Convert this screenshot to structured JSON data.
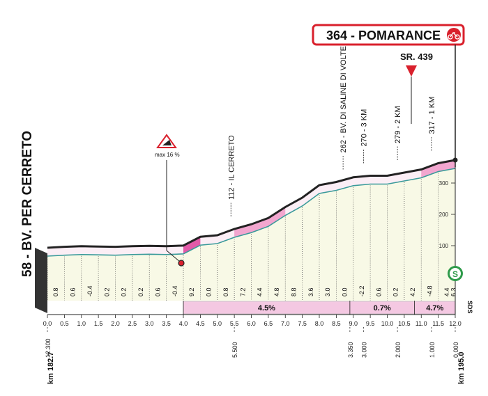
{
  "chart_data": {
    "type": "area",
    "title": "364 - POMARANCE",
    "start_label": "58 - BV. PER CERRETO",
    "road_label": "SR. 439",
    "km_start_label": "km 182.7",
    "km_end_label": "km 195.0",
    "x": [
      0,
      0.5,
      1,
      1.5,
      2,
      2.5,
      3,
      3.5,
      4,
      4.5,
      5,
      5.5,
      6,
      6.5,
      7,
      7.5,
      8,
      8.5,
      9,
      9.5,
      10,
      10.5,
      11,
      11.5,
      12
    ],
    "y": [
      80,
      83,
      85,
      84,
      83,
      85,
      86,
      85,
      87,
      115,
      120,
      140,
      155,
      175,
      210,
      240,
      280,
      290,
      305,
      310,
      310,
      320,
      330,
      350,
      360
    ],
    "xlim": [
      0,
      12
    ],
    "ylim": [
      0,
      400
    ],
    "x_ticks": [
      "0.0",
      "0.5",
      "1.0",
      "1.5",
      "2.0",
      "2.5",
      "3.0",
      "3.5",
      "4.0",
      "4.5",
      "5.0",
      "5.5",
      "6.0",
      "6.5",
      "7.0",
      "7.5",
      "8.0",
      "8.5",
      "9.0",
      "9.5",
      "10.0",
      "10.5",
      "11.0",
      "11.5",
      "12.0"
    ],
    "remaining_km_labels": [
      {
        "km": 0,
        "label": "12.300"
      },
      {
        "km": 5.5,
        "label": "5.500"
      },
      {
        "km": 8.9,
        "label": "3.350"
      },
      {
        "km": 9.3,
        "label": "3.000"
      },
      {
        "km": 10.3,
        "label": "2.000"
      },
      {
        "km": 11.3,
        "label": "1.000"
      },
      {
        "km": 12,
        "label": "0.000"
      }
    ],
    "y_ticks": [
      100,
      200,
      300
    ],
    "segment_gradients": [
      "0.8",
      "0.6",
      "-0.4",
      "0.2",
      "0.2",
      "0.2",
      "0.6",
      "-0.4",
      "9.2",
      "0.0",
      "0.8",
      "7.2",
      "4.4",
      "4.8",
      "8.8",
      "3.6",
      "3.0",
      "0.0",
      "-2.2",
      "0.6",
      "0.2",
      "4.2",
      "-4.8",
      "4.4",
      "6.3"
    ],
    "avg_gradients": [
      {
        "from": 4,
        "to": 8.9,
        "label": "4.5%"
      },
      {
        "from": 8.9,
        "to": 10.8,
        "label": "0.7%"
      },
      {
        "from": 10.8,
        "to": 12,
        "label": "4.7%"
      }
    ],
    "points_of_interest": [
      {
        "km": 5.4,
        "label": "112 - IL CERRETO"
      },
      {
        "km": 8.7,
        "label": "262 - BV. DI SALINE DI VOLTERRA"
      },
      {
        "km": 9.3,
        "label": "270 - 3 KM"
      },
      {
        "km": 10.3,
        "label": "279 - 2 KM"
      },
      {
        "km": 11.3,
        "label": "317 - 1 KM"
      }
    ],
    "warning_label": "max 16 %",
    "sprint_label": "SDS",
    "colors": {
      "profile_line": "#222222",
      "inner_line": "#3a9a9a",
      "fill": "#f7f8e8",
      "climb": "#e25aa8",
      "climb_light": "#f6c3de",
      "finish_box": "#d9202c",
      "bar": "#f4c8e2"
    }
  }
}
